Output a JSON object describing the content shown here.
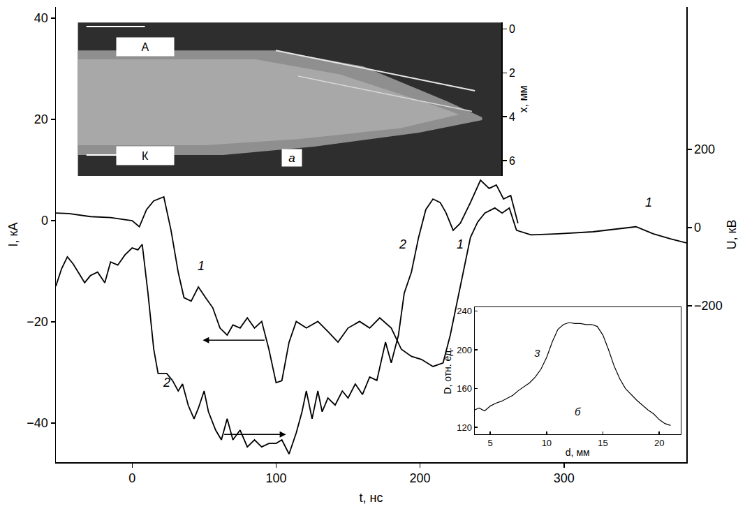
{
  "chart_data": [
    {
      "type": "line",
      "x_label": "t, нс",
      "y_label": "I, кА",
      "y2_label": "U, кВ",
      "xlim": [
        -53,
        385
      ],
      "xticks": [
        0,
        100,
        200,
        300
      ],
      "ylim": [
        -47.7,
        42.2
      ],
      "yticks": [
        -40,
        -20,
        0,
        20,
        40
      ],
      "y2lim": [
        -600,
        564
      ],
      "y2ticks": [
        -200,
        0,
        200
      ],
      "grid": false,
      "series": [
        {
          "color": "#000000",
          "x": [
            -53,
            -44,
            -29,
            -15,
            0,
            5,
            10,
            15,
            22,
            27,
            32,
            36,
            41,
            46,
            51,
            56,
            61,
            66,
            70,
            75,
            80,
            85,
            90,
            95,
            100,
            104,
            109,
            114,
            121,
            129,
            136,
            143,
            150,
            158,
            165,
            172,
            180,
            187,
            194,
            201,
            209,
            216,
            221,
            226,
            231,
            235,
            240,
            245,
            252,
            257,
            262,
            267,
            277,
            296,
            320,
            335,
            350,
            362,
            374,
            385
          ],
          "values": [
            1.5,
            1.4,
            0.8,
            0.6,
            0,
            -1.2,
            2.2,
            3.9,
            4.7,
            -1.9,
            -10.2,
            -15.2,
            -15.9,
            -13.1,
            -15.2,
            -17.2,
            -21.2,
            -22.6,
            -20.6,
            -21.2,
            -19.2,
            -21.2,
            -19.9,
            -25.4,
            -32,
            -31.6,
            -24,
            -19.9,
            -21.2,
            -19.9,
            -21.9,
            -24,
            -21.2,
            -19.9,
            -21.2,
            -19.2,
            -21.2,
            -25.4,
            -26.8,
            -27.4,
            -28.8,
            -28.1,
            -22.6,
            -15.7,
            -8.8,
            -3.3,
            -0.3,
            1.5,
            2.5,
            1.5,
            2.5,
            -1.9,
            -2.8,
            -2.6,
            -2.2,
            -1.7,
            -1.2,
            -2.6,
            -3.6,
            -4.4
          ]
        },
        {
          "color": "#000000",
          "axis": "y2",
          "x": [
            -53,
            -49,
            -45,
            -41,
            -36,
            -33,
            -29,
            -24,
            -19,
            -15,
            -10,
            -5,
            0,
            4,
            7,
            11,
            15,
            18,
            24,
            28,
            32,
            35,
            39,
            43,
            46,
            50,
            53,
            58,
            62,
            66,
            70,
            75,
            80,
            85,
            90,
            95,
            100,
            104,
            109,
            114,
            118,
            121,
            125,
            129,
            132,
            136,
            141,
            146,
            150,
            155,
            160,
            165,
            170,
            176,
            180,
            185,
            189,
            194,
            199,
            204,
            209,
            214,
            218,
            223,
            228,
            235,
            242,
            248,
            253,
            258,
            263,
            268
          ],
          "values": [
            -150,
            -105,
            -75,
            -93,
            -123,
            -141,
            -123,
            -114,
            -141,
            -88,
            -96,
            -70,
            -52,
            -57,
            -43,
            -168,
            -311,
            -373,
            -373,
            -391,
            -418,
            -400,
            -455,
            -489,
            -462,
            -418,
            -471,
            -518,
            -543,
            -489,
            -543,
            -518,
            -561,
            -543,
            -561,
            -552,
            -552,
            -543,
            -579,
            -525,
            -471,
            -418,
            -489,
            -418,
            -471,
            -436,
            -454,
            -418,
            -436,
            -400,
            -427,
            -382,
            -391,
            -293,
            -346,
            -275,
            -168,
            -114,
            -25,
            46,
            73,
            64,
            38,
            -7,
            11,
            64,
            121,
            100,
            109,
            73,
            82,
            11
          ]
        }
      ],
      "annotations": [
        {
          "text": "1",
          "x": 48,
          "y": -9
        },
        {
          "text": "1",
          "x": 228,
          "y": -4.7
        },
        {
          "text": "1",
          "x": 359,
          "y": 3.6
        },
        {
          "text": "2",
          "x": 24,
          "y": -32
        },
        {
          "text": "2",
          "x": 188,
          "y": -4.7
        }
      ]
    },
    {
      "type": "image",
      "label": "а",
      "y_label": "x, мм",
      "ylim": [
        6.7,
        -0.3
      ],
      "yticks": [
        0,
        2,
        4,
        6
      ],
      "electrodes": [
        "А",
        "К"
      ]
    },
    {
      "type": "line",
      "label": "б",
      "x_label": "d, мм",
      "y_label": "D, отн. ед.",
      "xlim": [
        3.6,
        21.9
      ],
      "xticks": [
        5,
        10,
        15,
        20
      ],
      "ylim": [
        112.8,
        243.6
      ],
      "yticks": [
        120,
        160,
        200,
        240
      ],
      "series": [
        {
          "color": "#000000",
          "x": [
            3.6,
            4,
            4.5,
            5,
            5.5,
            6,
            6.5,
            7,
            7.5,
            8,
            8.5,
            9,
            9.5,
            10,
            10.5,
            11,
            11.5,
            12,
            12.5,
            13,
            13.5,
            14,
            14.5,
            15,
            15.5,
            16,
            16.5,
            17,
            17.5,
            18,
            18.5,
            19,
            19.5,
            20,
            20.5,
            21
          ],
          "values": [
            138,
            140,
            137,
            142,
            145,
            147,
            150,
            153,
            158,
            162,
            166,
            172,
            180,
            192,
            208,
            221,
            226,
            228,
            227,
            227,
            226,
            226,
            224,
            215,
            200,
            183,
            170,
            160,
            154,
            148,
            143,
            138,
            134,
            128,
            124,
            122
          ]
        }
      ],
      "annotations": [
        {
          "text": "3",
          "x": 9.2,
          "y": 197
        }
      ]
    }
  ]
}
